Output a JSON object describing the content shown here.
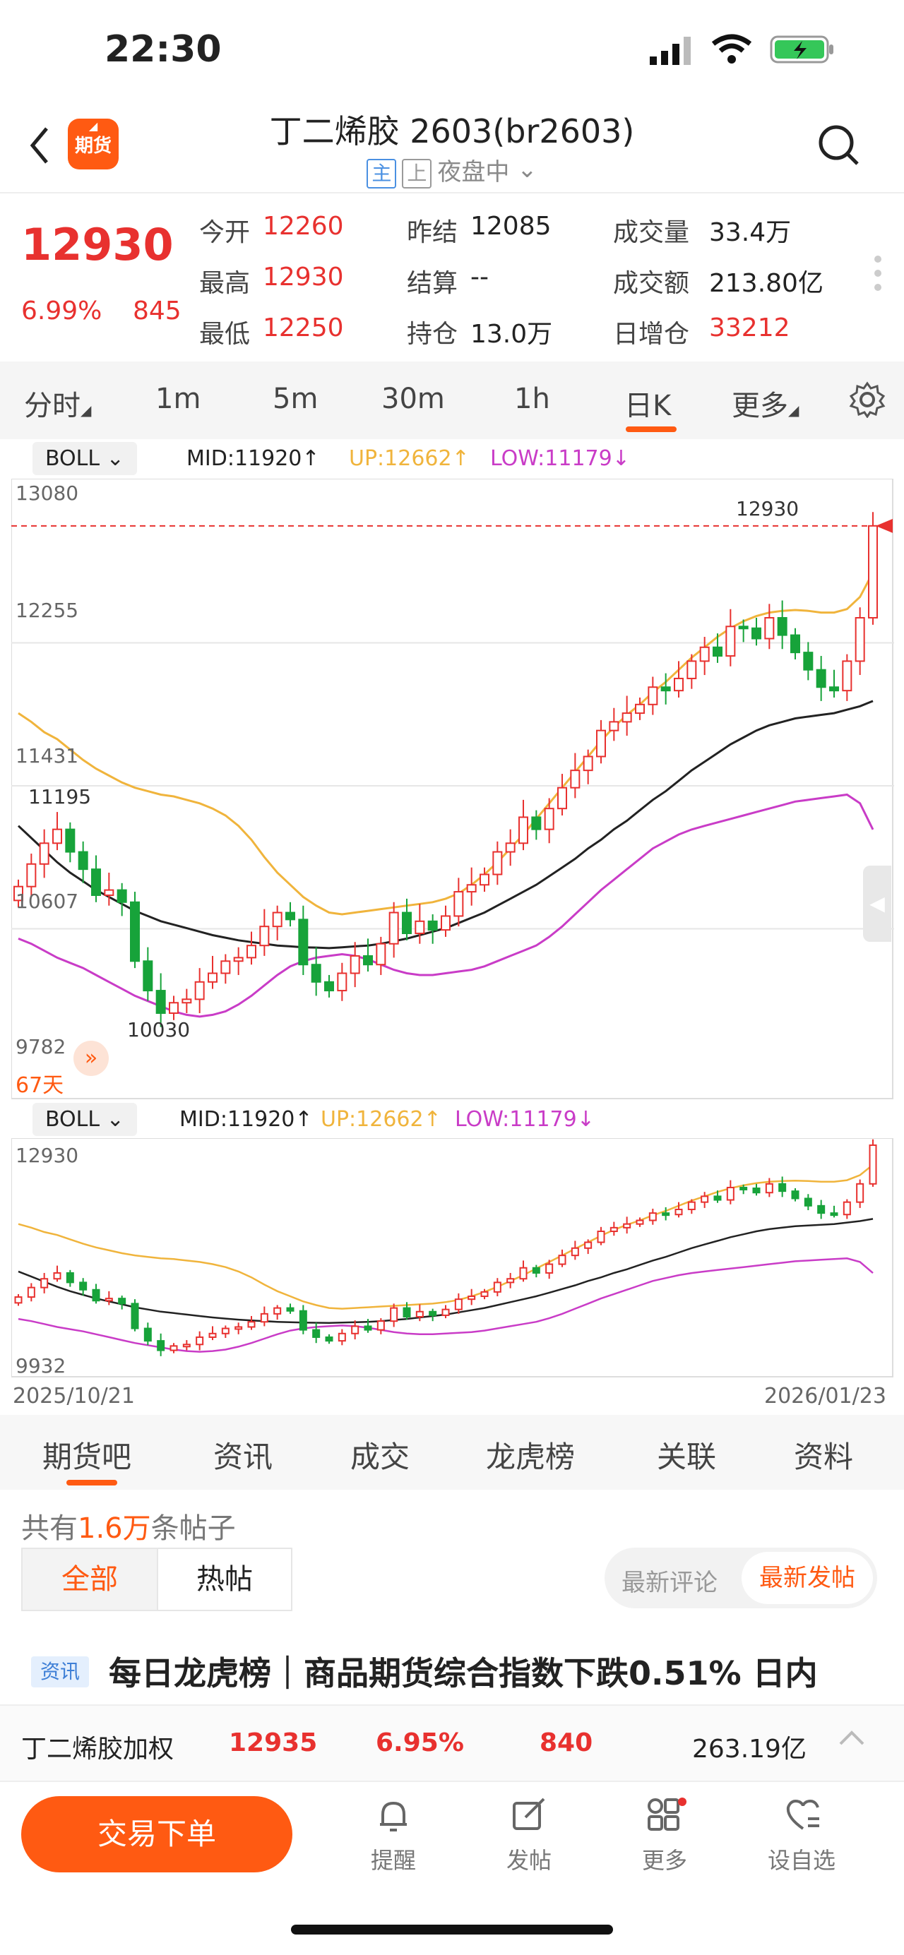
{
  "status": {
    "time": "22:30"
  },
  "header": {
    "title": "丁二烯胶 2603(br2603)",
    "tag_main": "主",
    "tag_shang": "上",
    "session": "夜盘中"
  },
  "app_badge": "期货",
  "quote": {
    "price": "12930",
    "change_pct": "6.99%",
    "change": "845",
    "open_label": "今开",
    "open": "12260",
    "high_label": "最高",
    "high": "12930",
    "low_label": "最低",
    "low": "12250",
    "prev_settle_label": "昨结",
    "prev_settle": "12085",
    "settle_label": "结算",
    "settle": "--",
    "oi_label": "持仓",
    "oi": "13.0万",
    "volume_label": "成交量",
    "volume": "33.4万",
    "turnover_label": "成交额",
    "turnover": "213.80亿",
    "oi_change_label": "日增仓",
    "oi_change": "33212"
  },
  "period_tabs": [
    "分时",
    "1m",
    "5m",
    "30m",
    "1h",
    "日K",
    "更多"
  ],
  "active_period": "日K",
  "main_chart": {
    "indicator": "BOLL",
    "mid": "MID:11920↑",
    "up": "UP:12662↑",
    "low": "LOW:11179↓",
    "y_labels": [
      "13080",
      "12255",
      "11431",
      "10607",
      "9782"
    ],
    "max_label": "12930",
    "min_label": "10030",
    "left_label": "11195",
    "days": "67天"
  },
  "mini_chart": {
    "indicator": "BOLL",
    "mid": "MID:11920↑",
    "up": "UP:12662↑",
    "low": "LOW:11179↓",
    "y_top": "12930",
    "y_bottom": "9932",
    "date_start": "2025/10/21",
    "date_end": "2026/01/23"
  },
  "colors": {
    "up": "#e8312f",
    "down": "#17a33a",
    "mid": "#222222",
    "upper": "#f0b43c",
    "lower": "#c93cc7",
    "accent": "#ff5a12"
  },
  "chart_data": {
    "type": "candlestick",
    "ylim": [
      9782,
      13080
    ],
    "closes": [
      10850,
      10980,
      11100,
      11180,
      11050,
      10950,
      10800,
      10830,
      10760,
      10420,
      10250,
      10120,
      10180,
      10200,
      10300,
      10350,
      10420,
      10440,
      10510,
      10620,
      10700,
      10660,
      10400,
      10300,
      10250,
      10350,
      10450,
      10400,
      10520,
      10700,
      10580,
      10650,
      10600,
      10680,
      10820,
      10860,
      10920,
      11050,
      11100,
      11250,
      11180,
      11300,
      11420,
      11520,
      11600,
      11750,
      11800,
      11850,
      11900,
      12000,
      11980,
      12050,
      12150,
      12230,
      12180,
      12350,
      12340,
      12280,
      12400,
      12300,
      12200,
      12100,
      12000,
      11980,
      12150,
      12400,
      12930
    ],
    "mid_line": [
      11200,
      11130,
      11060,
      10990,
      10930,
      10880,
      10830,
      10790,
      10750,
      10710,
      10680,
      10650,
      10630,
      10610,
      10590,
      10570,
      10555,
      10540,
      10530,
      10520,
      10510,
      10505,
      10500,
      10498,
      10495,
      10500,
      10505,
      10510,
      10520,
      10535,
      10550,
      10570,
      10590,
      10610,
      10640,
      10670,
      10700,
      10740,
      10780,
      10820,
      10860,
      10910,
      10960,
      11010,
      11070,
      11120,
      11180,
      11230,
      11290,
      11350,
      11400,
      11460,
      11520,
      11570,
      11620,
      11670,
      11710,
      11750,
      11780,
      11800,
      11820,
      11830,
      11840,
      11850,
      11870,
      11890,
      11920
    ],
    "upper_line": [
      11850,
      11800,
      11740,
      11700,
      11640,
      11580,
      11530,
      11490,
      11450,
      11420,
      11400,
      11380,
      11370,
      11350,
      11330,
      11300,
      11260,
      11200,
      11120,
      11020,
      10930,
      10860,
      10790,
      10740,
      10700,
      10690,
      10700,
      10710,
      10720,
      10730,
      10740,
      10750,
      10760,
      10780,
      10810,
      10860,
      10920,
      10990,
      11070,
      11150,
      11240,
      11330,
      11420,
      11510,
      11600,
      11690,
      11770,
      11840,
      11900,
      11970,
      12030,
      12100,
      12170,
      12230,
      12290,
      12340,
      12380,
      12410,
      12430,
      12440,
      12445,
      12440,
      12430,
      12430,
      12450,
      12520,
      12662
    ],
    "lower_line": [
      10550,
      10520,
      10480,
      10440,
      10410,
      10380,
      10340,
      10300,
      10260,
      10220,
      10190,
      10160,
      10130,
      10110,
      10100,
      10110,
      10130,
      10170,
      10220,
      10280,
      10340,
      10390,
      10420,
      10440,
      10450,
      10460,
      10450,
      10430,
      10400,
      10370,
      10350,
      10340,
      10340,
      10350,
      10360,
      10370,
      10390,
      10420,
      10450,
      10480,
      10510,
      10560,
      10620,
      10690,
      10760,
      10830,
      10890,
      10950,
      11010,
      11070,
      11110,
      11150,
      11179,
      11200,
      11220,
      11240,
      11260,
      11280,
      11300,
      11320,
      11340,
      11350,
      11360,
      11370,
      11380,
      11330,
      11179
    ]
  },
  "bottom_tabs": [
    "期货吧",
    "资讯",
    "成交",
    "龙虎榜",
    "关联",
    "资料"
  ],
  "posts": {
    "count_prefix": "共有",
    "count": "1.6万",
    "count_suffix": "条帖子",
    "filter_all": "全部",
    "filter_hot": "热帖",
    "sort_latest_comment": "最新评论",
    "sort_latest_post": "最新发帖",
    "item_tag": "资讯",
    "item_title": "每日龙虎榜｜商品期货综合指数下跌0.51% 日内"
  },
  "weighted": {
    "name": "丁二烯胶加权",
    "price": "12935",
    "pct": "6.95%",
    "change": "840",
    "amount": "263.19亿"
  },
  "bottom_bar": {
    "trade": "交易下单",
    "alert": "提醒",
    "post": "发帖",
    "more": "更多",
    "watch": "设自选"
  }
}
